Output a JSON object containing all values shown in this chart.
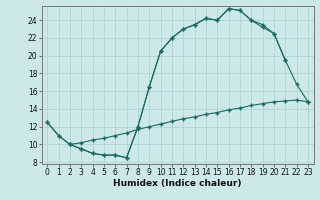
{
  "xlabel": "Humidex (Indice chaleur)",
  "bg_color": "#cce8e8",
  "grid_color": "#aed4d4",
  "line_color": "#1a6b5e",
  "xlim_min": -0.5,
  "xlim_max": 23.5,
  "ylim_min": 7.8,
  "ylim_max": 25.6,
  "yticks": [
    8,
    10,
    12,
    14,
    16,
    18,
    20,
    22,
    24
  ],
  "line1_x": [
    0,
    1,
    2,
    3,
    4,
    5,
    6,
    7,
    8,
    9,
    10,
    11,
    12,
    13,
    14,
    15,
    16,
    17,
    18,
    19,
    20,
    21
  ],
  "line1_y": [
    12.5,
    11.0,
    10.0,
    9.5,
    9.0,
    8.8,
    8.8,
    8.5,
    12.0,
    16.5,
    20.5,
    22.0,
    23.0,
    23.5,
    24.2,
    24.0,
    25.3,
    25.1,
    24.0,
    23.5,
    22.5,
    19.5
  ],
  "line2_x": [
    0,
    1,
    2,
    3,
    4,
    5,
    6,
    7,
    8,
    9,
    10,
    11,
    12,
    13,
    14,
    15,
    16,
    17,
    18,
    19,
    20,
    21,
    22,
    23
  ],
  "line2_y": [
    12.5,
    11.0,
    10.0,
    9.5,
    9.0,
    8.8,
    8.8,
    8.5,
    12.0,
    16.5,
    20.5,
    22.0,
    23.0,
    23.5,
    24.2,
    24.0,
    25.3,
    25.1,
    24.0,
    23.2,
    22.5,
    19.5,
    16.8,
    14.8
  ],
  "line3_x": [
    2,
    3,
    4,
    5,
    6,
    7,
    8,
    9,
    10,
    11,
    12,
    13,
    14,
    15,
    16,
    17,
    18,
    19,
    20,
    21,
    22,
    23
  ],
  "line3_y": [
    10.0,
    10.2,
    10.5,
    10.7,
    11.0,
    11.3,
    11.7,
    12.0,
    12.3,
    12.6,
    12.9,
    13.1,
    13.4,
    13.6,
    13.9,
    14.1,
    14.4,
    14.6,
    14.8,
    14.9,
    15.0,
    14.8
  ],
  "tick_fontsize": 5.5,
  "xlabel_fontsize": 6.5
}
